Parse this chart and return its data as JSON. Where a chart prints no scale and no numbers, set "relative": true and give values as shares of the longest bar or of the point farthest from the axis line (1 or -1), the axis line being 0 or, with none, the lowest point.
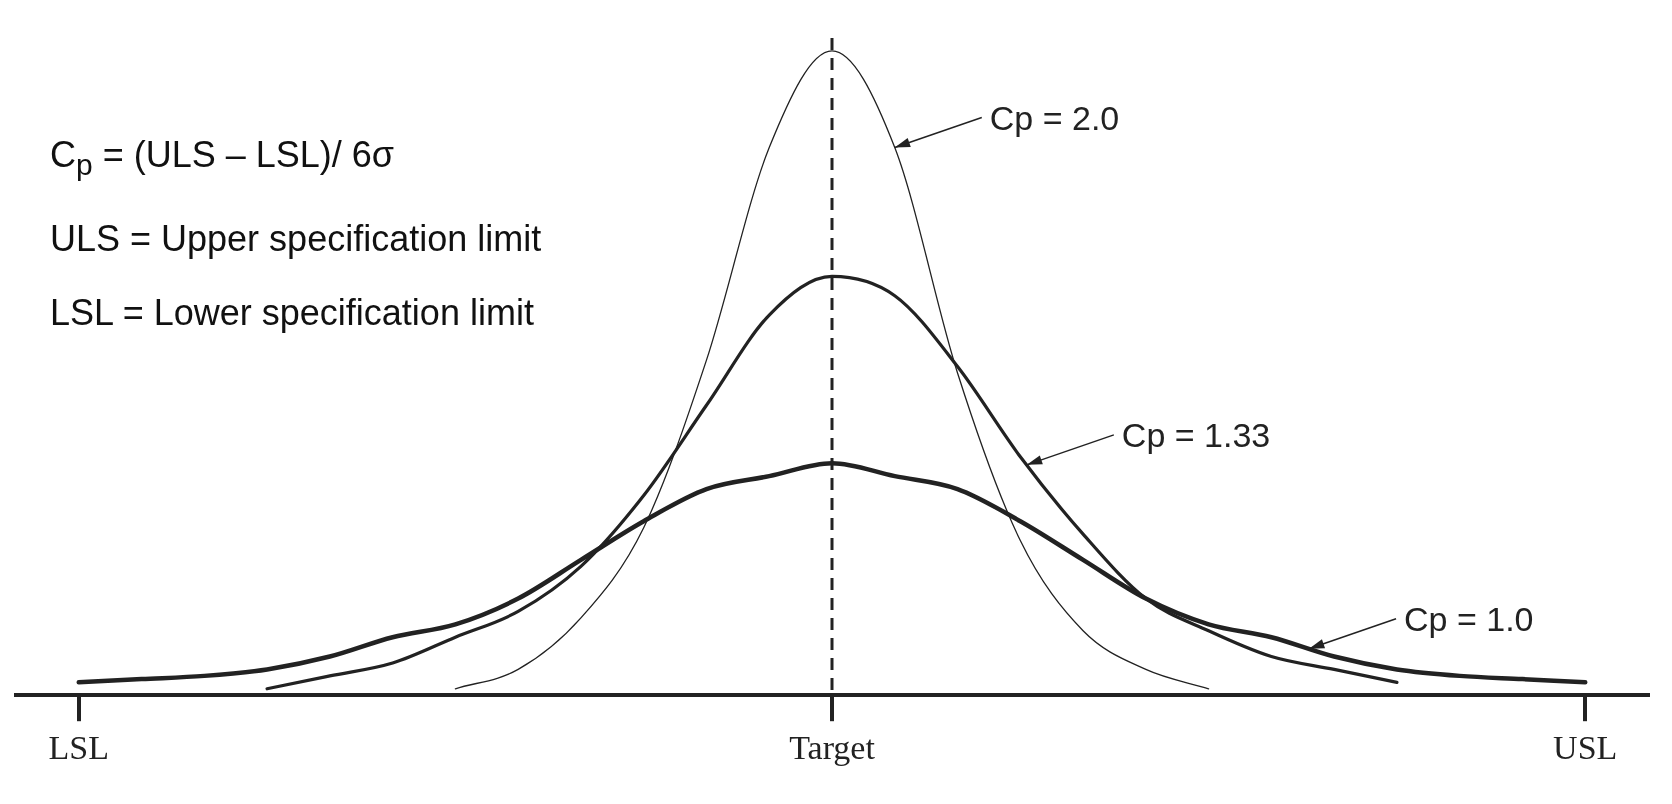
{
  "chart_data": {
    "type": "line",
    "relative": true,
    "categories": [
      null,
      "LSL",
      null,
      null,
      null,
      null,
      null,
      null,
      null,
      null,
      null,
      null,
      null,
      "Target",
      null,
      null,
      null,
      null,
      null,
      null,
      null,
      null,
      null,
      null,
      null,
      "USL",
      null
    ],
    "grid": false,
    "legend": "right",
    "marker": "none",
    "series": [
      {
        "name": "Cp = 2.0",
        "color": "#222222",
        "values": [
          null,
          null,
          null,
          null,
          null,
          null,
          null,
          0.01,
          0.04,
          0.12,
          0.26,
          0.52,
          0.85,
          1,
          0.85,
          0.5,
          0.24,
          0.1,
          0.04,
          0.01,
          null,
          null,
          null,
          null,
          null,
          null,
          null
        ]
      },
      {
        "name": "Cp = 1.33",
        "color": "#222222",
        "values": [
          null,
          null,
          null,
          null,
          0.01,
          0.03,
          0.05,
          0.09,
          0.13,
          0.2,
          0.31,
          0.45,
          0.59,
          0.65,
          0.62,
          0.51,
          0.37,
          0.25,
          0.15,
          0.1,
          0.06,
          0.04,
          0.02,
          null,
          null,
          null,
          null
        ]
      },
      {
        "name": "Cp = 1.0",
        "color": "#222222",
        "values": [
          null,
          0.02,
          0.025,
          0.03,
          0.04,
          0.06,
          0.09,
          0.11,
          0.15,
          0.21,
          0.27,
          0.32,
          0.34,
          0.36,
          0.34,
          0.32,
          0.27,
          0.21,
          0.15,
          0.11,
          0.09,
          0.06,
          0.04,
          0.03,
          0.025,
          0.02,
          null
        ]
      }
    ],
    "ref_lines": [
      {
        "axis": "x",
        "value": "Target",
        "line_style": "dashed",
        "color": "#222222"
      }
    ],
    "annotations": [
      "C$_{p}$ = (ULS – LSL)/ 6σ",
      "ULS = Upper specification limit",
      "LSL = Lower specification limit"
    ]
  }
}
